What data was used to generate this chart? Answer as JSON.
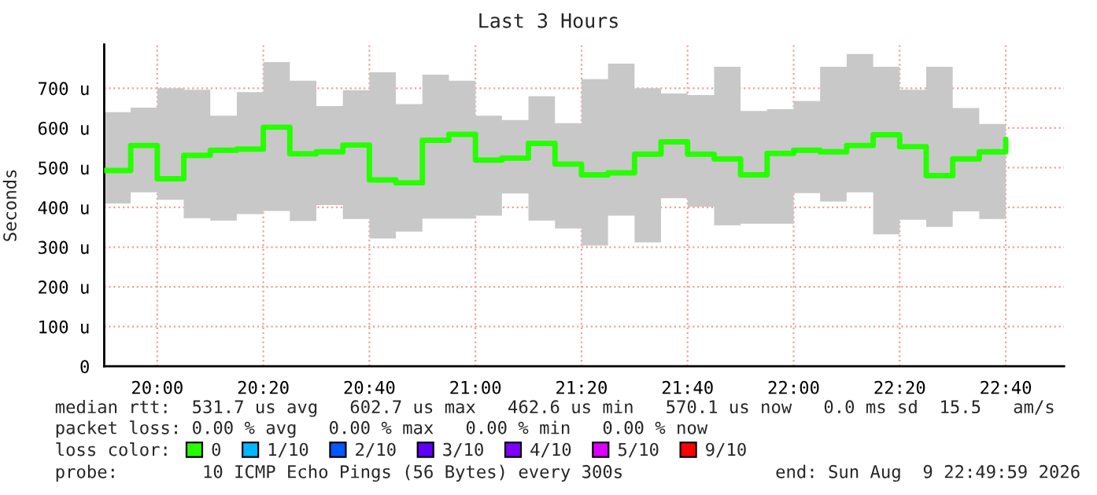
{
  "chart_data": {
    "type": "step",
    "title": "Last 3 Hours",
    "ylabel": "Seconds",
    "x": [
      "2026-08-09T19:50",
      "2026-08-09T19:55",
      "2026-08-09T20:00",
      "2026-08-09T20:05",
      "2026-08-09T20:10",
      "2026-08-09T20:15",
      "2026-08-09T20:20",
      "2026-08-09T20:25",
      "2026-08-09T20:30",
      "2026-08-09T20:35",
      "2026-08-09T20:40",
      "2026-08-09T20:45",
      "2026-08-09T20:50",
      "2026-08-09T20:55",
      "2026-08-09T21:00",
      "2026-08-09T21:05",
      "2026-08-09T21:10",
      "2026-08-09T21:15",
      "2026-08-09T21:20",
      "2026-08-09T21:25",
      "2026-08-09T21:30",
      "2026-08-09T21:35",
      "2026-08-09T21:40",
      "2026-08-09T21:45",
      "2026-08-09T21:50",
      "2026-08-09T21:55",
      "2026-08-09T22:00",
      "2026-08-09T22:05",
      "2026-08-09T22:10",
      "2026-08-09T22:15",
      "2026-08-09T22:20",
      "2026-08-09T22:25",
      "2026-08-09T22:30",
      "2026-08-09T22:35",
      "2026-08-09T22:40"
    ],
    "series": [
      {
        "name": "0",
        "color": "#26ff00",
        "values": [
          493,
          556,
          472,
          531,
          544,
          547,
          602,
          535,
          540,
          557,
          469,
          462,
          569,
          584,
          519,
          524,
          561,
          509,
          482,
          487,
          534,
          565,
          534,
          522,
          482,
          536,
          544,
          540,
          556,
          583,
          553,
          480,
          522,
          540,
          571
        ],
        "lower": [
          410,
          438,
          419,
          373,
          367,
          383,
          391,
          366,
          406,
          371,
          322,
          339,
          372,
          372,
          379,
          435,
          367,
          347,
          304,
          379,
          312,
          423,
          402,
          355,
          359,
          359,
          436,
          415,
          438,
          332,
          369,
          351,
          390,
          371,
          465
        ],
        "upper": [
          640,
          651,
          700,
          696,
          631,
          690,
          766,
          719,
          655,
          695,
          740,
          660,
          734,
          719,
          631,
          620,
          680,
          612,
          723,
          762,
          700,
          687,
          683,
          754,
          643,
          647,
          668,
          754,
          786,
          754,
          696,
          754,
          650,
          610,
          695
        ]
      },
      {
        "name": "1/10",
        "color": "#00b8ff",
        "values": [
          null,
          null,
          null,
          null,
          null,
          null,
          null,
          null,
          null,
          null,
          null,
          null,
          null,
          null,
          null,
          null,
          null,
          null,
          null,
          null,
          null,
          null,
          null,
          null,
          null,
          null,
          null,
          null,
          null,
          null,
          null,
          null,
          null,
          null,
          null
        ]
      },
      {
        "name": "2/10",
        "color": "#0059ff",
        "values": [
          null,
          null,
          null,
          null,
          null,
          null,
          null,
          null,
          null,
          null,
          null,
          null,
          null,
          null,
          null,
          null,
          null,
          null,
          null,
          null,
          null,
          null,
          null,
          null,
          null,
          null,
          null,
          null,
          null,
          null,
          null,
          null,
          null,
          null,
          null
        ]
      },
      {
        "name": "3/10",
        "color": "#5e00ff",
        "values": [
          null,
          null,
          null,
          null,
          null,
          null,
          null,
          null,
          null,
          null,
          null,
          null,
          null,
          null,
          null,
          null,
          null,
          null,
          null,
          null,
          null,
          null,
          null,
          null,
          null,
          null,
          null,
          null,
          null,
          null,
          null,
          null,
          null,
          null,
          null
        ]
      },
      {
        "name": "4/10",
        "color": "#7e00ff",
        "values": [
          null,
          null,
          null,
          null,
          null,
          null,
          null,
          null,
          null,
          null,
          null,
          null,
          null,
          null,
          null,
          null,
          null,
          null,
          null,
          null,
          null,
          null,
          null,
          null,
          null,
          null,
          null,
          null,
          null,
          null,
          null,
          null,
          null,
          null,
          null
        ]
      },
      {
        "name": "5/10",
        "color": "#dd00ff",
        "values": [
          null,
          null,
          null,
          null,
          null,
          null,
          null,
          null,
          null,
          null,
          null,
          null,
          null,
          null,
          null,
          null,
          null,
          null,
          null,
          null,
          null,
          null,
          null,
          null,
          null,
          null,
          null,
          null,
          null,
          null,
          null,
          null,
          null,
          null,
          null
        ]
      },
      {
        "name": "9/10",
        "color": "#ff0000",
        "values": [
          null,
          null,
          null,
          null,
          null,
          null,
          null,
          null,
          null,
          null,
          null,
          null,
          null,
          null,
          null,
          null,
          null,
          null,
          null,
          null,
          null,
          null,
          null,
          null,
          null,
          null,
          null,
          null,
          null,
          null,
          null,
          null,
          null,
          null,
          null
        ]
      }
    ],
    "xlim": [
      "2026-08-09T19:50",
      "2026-08-09T22:51"
    ],
    "xticks": [
      {
        "value": "2026-08-09T20:00",
        "label": "20:00"
      },
      {
        "value": "2026-08-09T20:20",
        "label": "20:20"
      },
      {
        "value": "2026-08-09T20:40",
        "label": "20:40"
      },
      {
        "value": "2026-08-09T21:00",
        "label": "21:00"
      },
      {
        "value": "2026-08-09T21:20",
        "label": "21:20"
      },
      {
        "value": "2026-08-09T21:40",
        "label": "21:40"
      },
      {
        "value": "2026-08-09T22:00",
        "label": "22:00"
      },
      {
        "value": "2026-08-09T22:20",
        "label": "22:20"
      },
      {
        "value": "2026-08-09T22:40",
        "label": "22:40"
      }
    ],
    "ylim": [
      0,
      810
    ],
    "yticks": [
      0,
      {
        "value": 100,
        "label": "100 u"
      },
      {
        "value": 200,
        "label": "200 u"
      },
      {
        "value": 300,
        "label": "300 u"
      },
      {
        "value": 400,
        "label": "400 u"
      },
      {
        "value": 500,
        "label": "500 u"
      },
      {
        "value": 600,
        "label": "600 u"
      },
      {
        "value": 700,
        "label": "700 u"
      }
    ],
    "grid": true,
    "legend": "bottom",
    "legend_title": "loss color:",
    "annotations": [
      "median rtt:  531.7 us avg   602.7 us max   462.6 us min   570.1 us now   0.0 ms sd  15.5   am/s",
      "packet loss: 0.00 % avg   0.00 % max   0.00 % min   0.00 % now",
      "probe:        10 ICMP Echo Pings (56 Bytes) every 300s",
      "end: Sun Aug  9 22:49:59 2026"
    ]
  }
}
